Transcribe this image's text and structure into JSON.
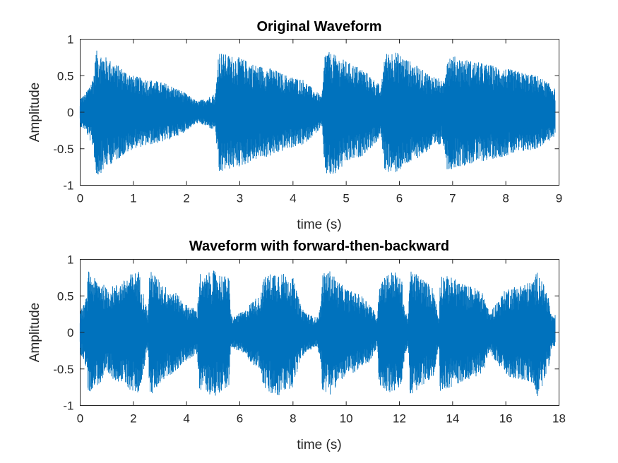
{
  "chart_data": [
    {
      "type": "line",
      "title": "Original Waveform",
      "xlabel": "time (s)",
      "ylabel": "Amplitude",
      "xlim": [
        0,
        9
      ],
      "ylim": [
        -1,
        1
      ],
      "xticks": [
        "0",
        "1",
        "2",
        "3",
        "4",
        "5",
        "6",
        "7",
        "8",
        "9"
      ],
      "yticks": [
        "1",
        "0.5",
        "0",
        "-0.5",
        "-1"
      ],
      "grid": false,
      "color": "#0072BD",
      "envelope": {
        "t": [
          0,
          0.1,
          0.25,
          0.3,
          0.5,
          0.8,
          1.0,
          1.3,
          1.6,
          1.9,
          2.2,
          2.4,
          2.5,
          2.52,
          2.55,
          2.6,
          2.7,
          3.0,
          3.3,
          3.6,
          3.9,
          4.2,
          4.4,
          4.5,
          4.53,
          4.56,
          4.6,
          4.75,
          5.0,
          5.3,
          5.6,
          5.65,
          5.68,
          5.72,
          5.9,
          6.2,
          6.5,
          6.78,
          6.8,
          6.84,
          6.9,
          7.1,
          7.4,
          7.7,
          8.0,
          8.3,
          8.6,
          8.9,
          8.93
        ],
        "upper": [
          0.2,
          0.25,
          0.5,
          0.85,
          0.75,
          0.6,
          0.5,
          0.45,
          0.4,
          0.3,
          0.15,
          0.2,
          0.25,
          0.2,
          0.3,
          0.85,
          0.8,
          0.75,
          0.65,
          0.6,
          0.5,
          0.45,
          0.3,
          0.25,
          0.2,
          0.35,
          0.85,
          0.8,
          0.7,
          0.6,
          0.4,
          0.3,
          0.5,
          0.8,
          0.85,
          0.7,
          0.55,
          0.45,
          0.35,
          0.5,
          0.8,
          0.75,
          0.7,
          0.65,
          0.6,
          0.55,
          0.5,
          0.35,
          0.3
        ],
        "lower": [
          -0.2,
          -0.25,
          -0.5,
          -0.9,
          -0.75,
          -0.6,
          -0.5,
          -0.45,
          -0.4,
          -0.3,
          -0.15,
          -0.2,
          -0.25,
          -0.2,
          -0.3,
          -0.9,
          -0.8,
          -0.75,
          -0.65,
          -0.6,
          -0.5,
          -0.45,
          -0.3,
          -0.25,
          -0.2,
          -0.35,
          -0.85,
          -0.9,
          -0.7,
          -0.6,
          -0.4,
          -0.3,
          -0.5,
          -0.8,
          -0.85,
          -0.7,
          -0.55,
          -0.45,
          -0.35,
          -0.5,
          -0.8,
          -0.75,
          -0.7,
          -0.65,
          -0.6,
          -0.55,
          -0.5,
          -0.35,
          -0.3
        ]
      }
    },
    {
      "type": "line",
      "title": "Waveform with forward-then-backward",
      "xlabel": "time (s)",
      "ylabel": "Amplitude",
      "xlim": [
        0,
        18
      ],
      "ylim": [
        -1,
        1
      ],
      "xticks": [
        "0",
        "2",
        "4",
        "6",
        "8",
        "10",
        "12",
        "14",
        "16",
        "18"
      ],
      "yticks": [
        "1",
        "0.5",
        "0",
        "-0.5",
        "-1"
      ],
      "grid": false,
      "color": "#0072BD",
      "envelope": {
        "t": [
          0,
          0.1,
          0.25,
          0.3,
          0.5,
          0.8,
          1.0,
          1.3,
          1.6,
          1.9,
          2.2,
          2.4,
          2.5,
          2.52,
          2.55,
          2.6,
          2.7,
          3.0,
          3.3,
          3.6,
          3.9,
          4.2,
          4.4,
          4.5,
          4.53,
          4.56,
          4.6,
          4.75,
          5.0,
          5.3,
          5.6,
          5.65,
          5.68,
          5.72,
          5.9,
          6.2,
          6.5,
          6.78,
          6.8,
          6.84,
          6.9,
          7.1,
          7.4,
          7.7,
          8.0,
          8.3,
          8.6,
          8.9,
          8.93,
          9.0,
          9.07,
          9.1,
          9.4,
          9.7,
          10.0,
          10.3,
          10.6,
          10.9,
          11.1,
          11.16,
          11.2,
          11.22,
          11.5,
          11.8,
          12.1,
          12.2,
          12.28,
          12.32,
          12.35,
          12.4,
          12.7,
          13.0,
          13.3,
          13.4,
          13.47,
          13.5,
          13.53,
          14.0,
          14.5,
          15.0,
          15.2,
          15.3,
          15.36,
          15.4,
          15.45,
          16.0,
          16.5,
          17.0,
          17.2,
          17.6,
          17.7,
          17.8,
          17.86
        ],
        "upper": [
          0.3,
          0.35,
          0.5,
          0.85,
          0.75,
          0.7,
          0.6,
          0.65,
          0.7,
          0.8,
          0.85,
          0.5,
          0.35,
          0.3,
          0.2,
          0.8,
          0.85,
          0.7,
          0.6,
          0.55,
          0.4,
          0.35,
          0.3,
          0.85,
          0.8,
          0.75,
          0.7,
          0.8,
          0.85,
          0.8,
          0.75,
          0.25,
          0.3,
          0.2,
          0.25,
          0.3,
          0.45,
          0.5,
          0.6,
          0.65,
          0.75,
          0.8,
          0.85,
          0.8,
          0.75,
          0.35,
          0.25,
          0.2,
          0.25,
          0.3,
          0.5,
          0.8,
          0.85,
          0.7,
          0.6,
          0.55,
          0.5,
          0.4,
          0.25,
          0.2,
          0.35,
          0.75,
          0.8,
          0.85,
          0.7,
          0.3,
          0.25,
          0.2,
          0.35,
          0.85,
          0.8,
          0.7,
          0.6,
          0.35,
          0.2,
          0.25,
          0.8,
          0.75,
          0.65,
          0.6,
          0.5,
          0.35,
          0.3,
          0.25,
          0.3,
          0.6,
          0.65,
          0.7,
          0.85,
          0.5,
          0.25,
          0.2,
          0.25
        ],
        "lower": [
          -0.3,
          -0.35,
          -0.5,
          -0.85,
          -0.75,
          -0.7,
          -0.6,
          -0.65,
          -0.7,
          -0.8,
          -0.85,
          -0.5,
          -0.35,
          -0.3,
          -0.2,
          -0.8,
          -0.85,
          -0.7,
          -0.6,
          -0.55,
          -0.4,
          -0.35,
          -0.3,
          -0.85,
          -0.9,
          -0.75,
          -0.7,
          -0.8,
          -0.9,
          -0.8,
          -0.75,
          -0.25,
          -0.3,
          -0.2,
          -0.25,
          -0.3,
          -0.45,
          -0.5,
          -0.6,
          -0.65,
          -0.75,
          -0.85,
          -0.9,
          -0.8,
          -0.75,
          -0.35,
          -0.25,
          -0.2,
          -0.25,
          -0.3,
          -0.5,
          -0.8,
          -0.85,
          -0.7,
          -0.6,
          -0.55,
          -0.5,
          -0.4,
          -0.25,
          -0.2,
          -0.35,
          -0.75,
          -0.8,
          -0.85,
          -0.7,
          -0.3,
          -0.25,
          -0.2,
          -0.35,
          -0.85,
          -0.8,
          -0.7,
          -0.6,
          -0.35,
          -0.2,
          -0.25,
          -0.8,
          -0.75,
          -0.65,
          -0.6,
          -0.5,
          -0.35,
          -0.3,
          -0.25,
          -0.3,
          -0.6,
          -0.65,
          -0.7,
          -0.9,
          -0.5,
          -0.25,
          -0.2,
          -0.25
        ]
      }
    }
  ]
}
